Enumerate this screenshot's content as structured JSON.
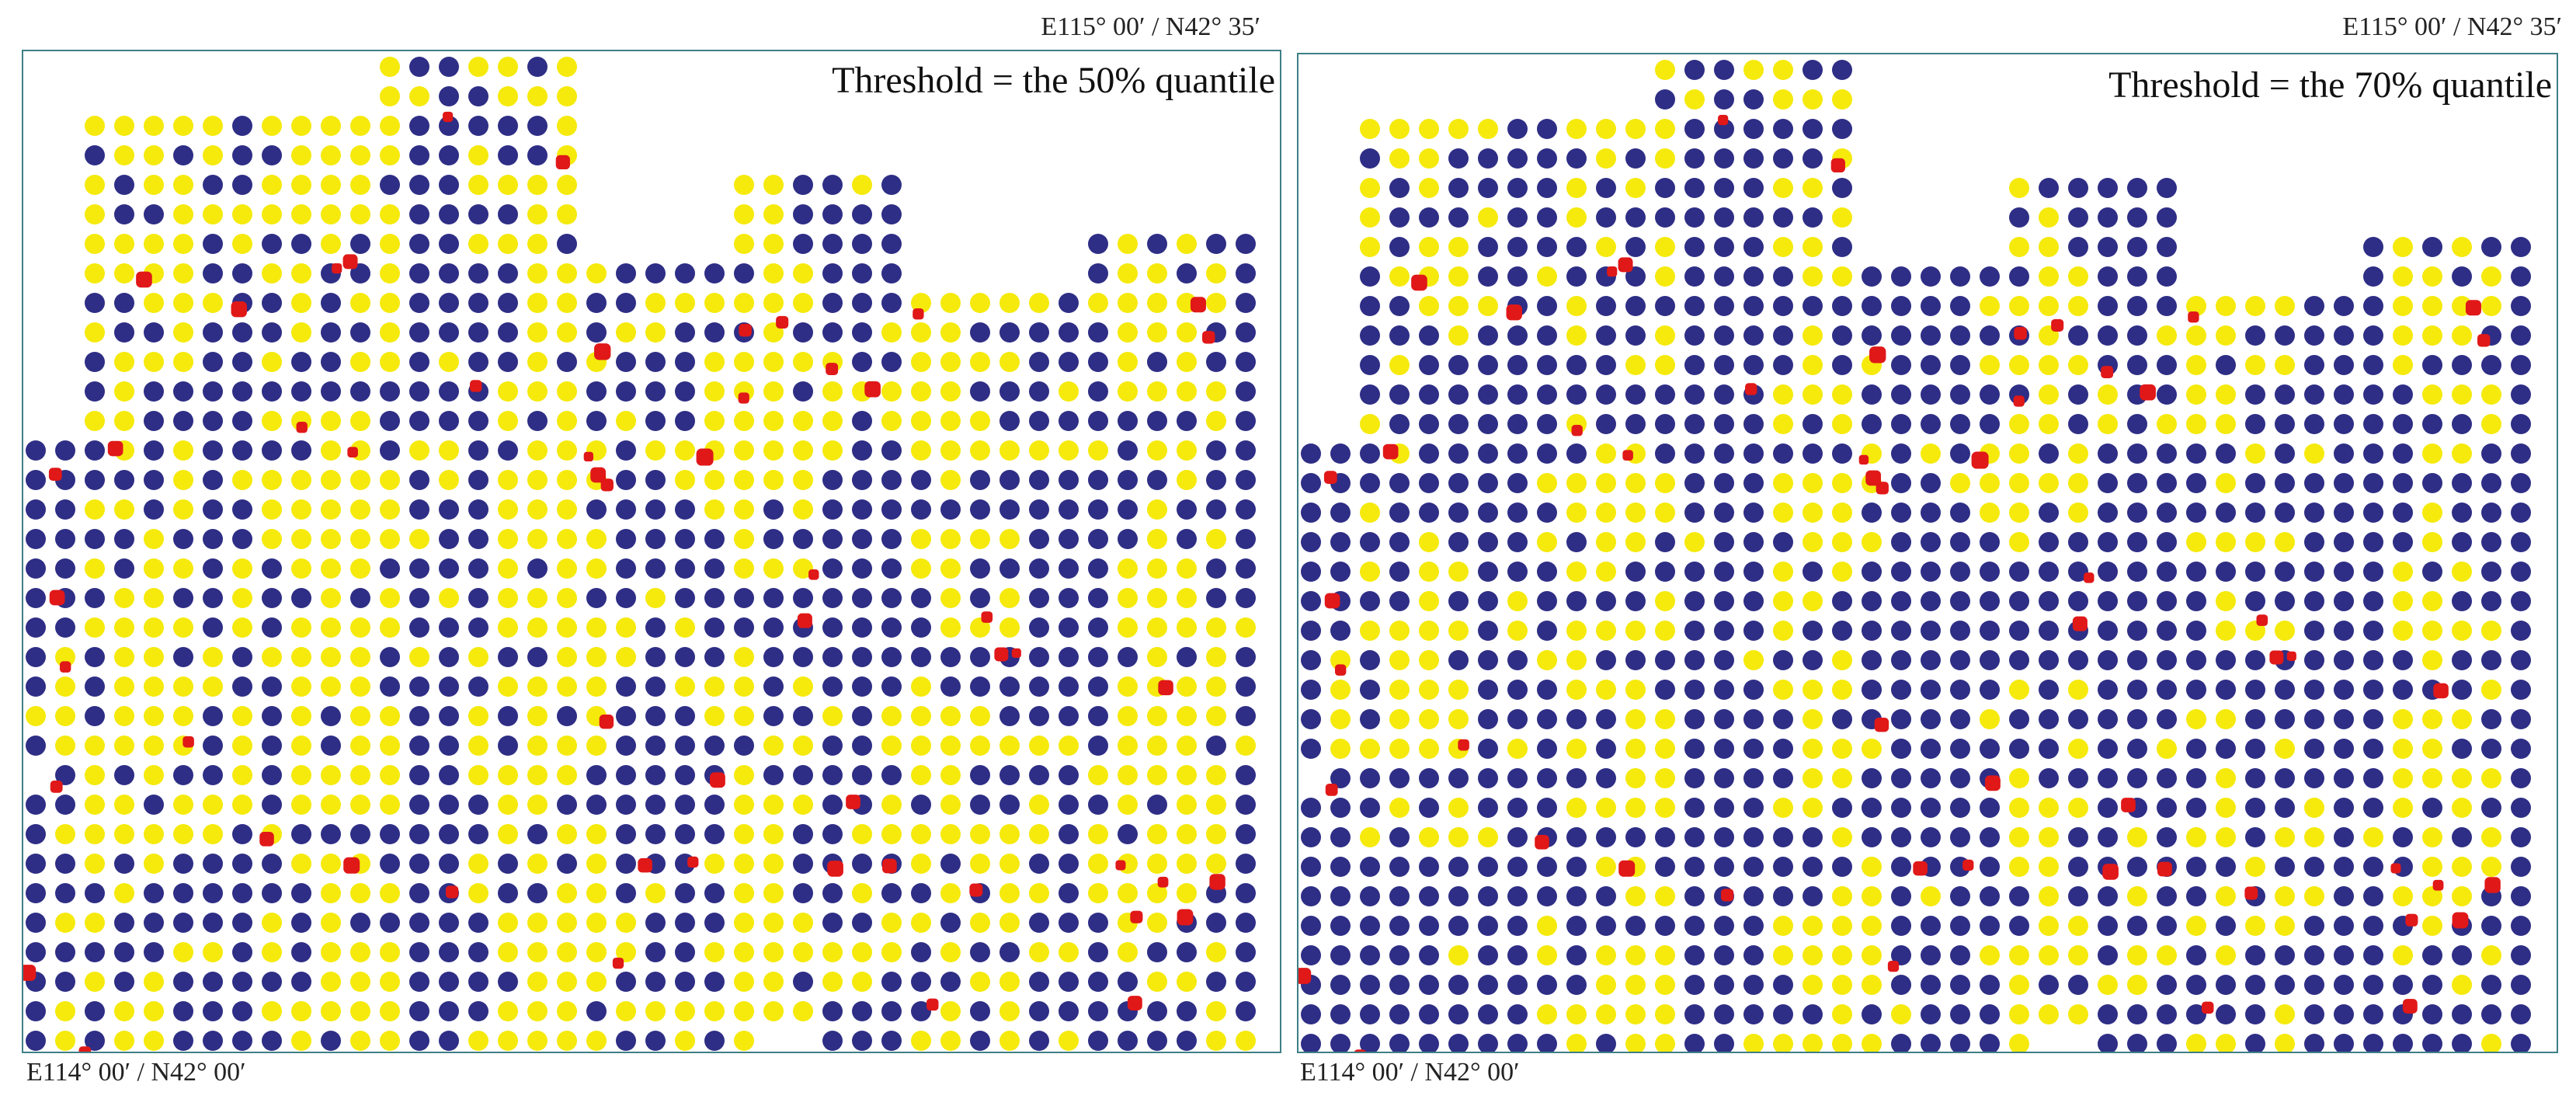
{
  "panels": [
    {
      "title": "Threshold = the 50% quantile",
      "corner_top_right": "E115° 00′ / N42° 35′",
      "corner_bottom_left": "E114° 00′ / N42° 00′",
      "threshold_quantile": 0.5,
      "blue_share_estimate": 0.5,
      "red_samples": 55
    },
    {
      "title": "Threshold = the 70% quantile",
      "corner_top_right": "E115° 00′ / N42° 35′",
      "corner_bottom_left": "E114° 00′ / N42° 00′",
      "threshold_quantile": 0.7,
      "blue_share_estimate": 0.7,
      "red_samples": 55
    }
  ],
  "colors": {
    "below_threshold": "#2e2e86",
    "above_threshold": "#f5ea0c",
    "marker": "#e01818",
    "frame": "#3f7f86",
    "background": "#ffffff"
  }
}
